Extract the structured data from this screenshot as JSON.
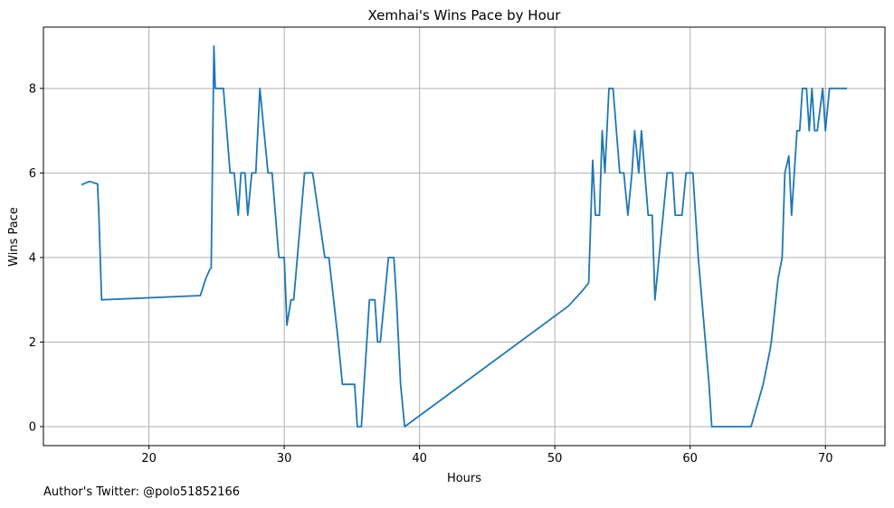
{
  "chart_data": {
    "type": "line",
    "title": "Xemhai's Wins Pace by Hour",
    "xlabel": "Hours",
    "ylabel": "Wins Pace",
    "xlim": [
      12.2,
      74.4
    ],
    "ylim": [
      -0.45,
      9.45
    ],
    "xticks": [
      20,
      30,
      40,
      50,
      60,
      70
    ],
    "yticks": [
      0,
      2,
      4,
      6,
      8
    ],
    "grid": true,
    "colors": {
      "line": "#1f77b4",
      "grid": "#b0b0b0",
      "axis": "#000000"
    },
    "series": [
      {
        "x": [
          15.0,
          15.6,
          16.2,
          16.3,
          16.5,
          23.8,
          24.2,
          24.5,
          24.6,
          24.8,
          24.9,
          25.5,
          26.0,
          26.3,
          26.6,
          26.8,
          27.1,
          27.3,
          27.6,
          27.9,
          28.2,
          28.8,
          29.1,
          29.6,
          30.0,
          30.2,
          30.5,
          30.7,
          31.5,
          32.1,
          33.0,
          33.3,
          34.0,
          34.3,
          35.2,
          35.4,
          35.7,
          36.3,
          36.7,
          36.9,
          37.1,
          37.7,
          38.1,
          38.3,
          38.6,
          38.9,
          51.0,
          52.0,
          52.5,
          52.8,
          53.0,
          53.3,
          53.5,
          53.7,
          54.0,
          54.3,
          54.8,
          55.1,
          55.4,
          55.7,
          55.9,
          56.2,
          56.4,
          56.9,
          57.2,
          57.4,
          57.7,
          58.3,
          58.7,
          58.9,
          59.4,
          59.7,
          60.2,
          60.6,
          61.4,
          61.6,
          62.0,
          63.5,
          64.5,
          65.4,
          65.9,
          66.0,
          66.5,
          66.8,
          67.0,
          67.3,
          67.5,
          67.9,
          68.1,
          68.3,
          68.6,
          68.8,
          69.0,
          69.2,
          69.4,
          69.8,
          70.0,
          70.3,
          70.6,
          71.0,
          71.6
        ],
        "y": [
          5.72,
          5.8,
          5.74,
          5.0,
          3.0,
          3.1,
          3.5,
          3.72,
          3.75,
          9.0,
          8.0,
          8.0,
          6.0,
          6.0,
          5.0,
          6.0,
          6.0,
          5.0,
          6.0,
          6.0,
          8.0,
          6.0,
          6.0,
          4.0,
          4.0,
          2.4,
          3.0,
          3.0,
          6.0,
          6.0,
          4.0,
          4.0,
          2.0,
          1.0,
          1.0,
          0.0,
          0.0,
          3.0,
          3.0,
          2.0,
          2.0,
          4.0,
          4.0,
          3.0,
          1.0,
          0.0,
          2.85,
          3.2,
          3.4,
          6.3,
          5.0,
          5.0,
          7.0,
          6.0,
          8.0,
          8.0,
          6.0,
          6.0,
          5.0,
          6.0,
          7.0,
          6.0,
          7.0,
          5.0,
          5.0,
          3.0,
          4.0,
          6.0,
          6.0,
          5.0,
          5.0,
          6.0,
          6.0,
          4.0,
          1.0,
          0.0,
          0.0,
          0.0,
          0.0,
          1.0,
          1.8,
          2.0,
          3.5,
          4.0,
          6.0,
          6.4,
          5.0,
          7.0,
          7.0,
          8.0,
          8.0,
          7.0,
          8.0,
          7.0,
          7.0,
          8.0,
          7.0,
          8.0,
          8.0,
          8.0,
          8.0
        ]
      }
    ]
  },
  "footer": {
    "author_note": "Author's Twitter: @polo51852166"
  }
}
